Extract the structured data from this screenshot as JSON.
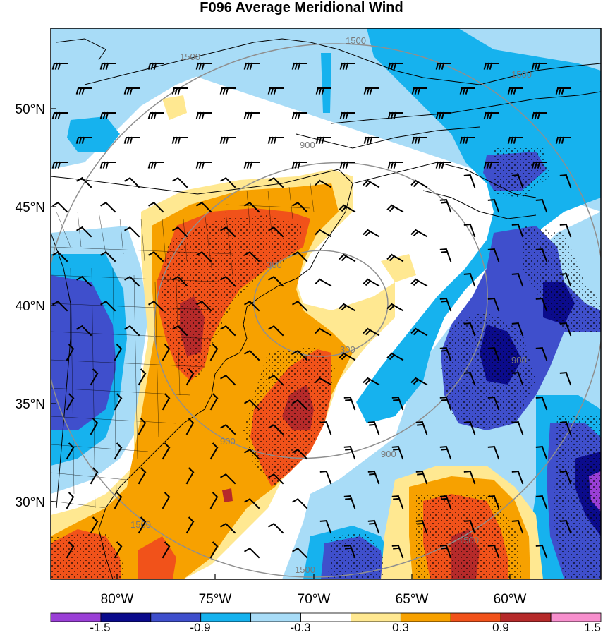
{
  "title": "F096 Average Meridional Wind",
  "lat_labels": [
    "50°N",
    "45°N",
    "40°N",
    "35°N",
    "30°N"
  ],
  "lon_labels": [
    "80°W",
    "75°W",
    "70°W",
    "65°W",
    "60°W"
  ],
  "contour_labels": [
    "1500",
    "1500",
    "1500",
    "900",
    "900",
    "900",
    "900",
    "300",
    "300",
    "1500",
    "1500",
    "1500"
  ],
  "colorbar": {
    "labels": [
      "-1.5",
      "-0.9",
      "-0.3",
      "0.3",
      "0.9",
      "1.5"
    ],
    "colors": [
      "#9a3fd6",
      "#0b0b8c",
      "#3f4fcc",
      "#16b2ee",
      "#a8dcf7",
      "#ffffff",
      "#ffe891",
      "#f7a100",
      "#f1521a",
      "#b62a2a",
      "#f78fcd"
    ]
  },
  "palette": {
    "violet": "#9a3fd6",
    "navy": "#0b0b8c",
    "blue": "#3f4fcc",
    "cyan": "#16b2ee",
    "light_blue": "#a8dcf7",
    "pale_yellow": "#ffe891",
    "orange": "#f7a100",
    "red_orange": "#f1521a",
    "dark_red": "#b62a2a",
    "pink": "#f78fcd",
    "contour_gray": "#8f8f8f"
  }
}
